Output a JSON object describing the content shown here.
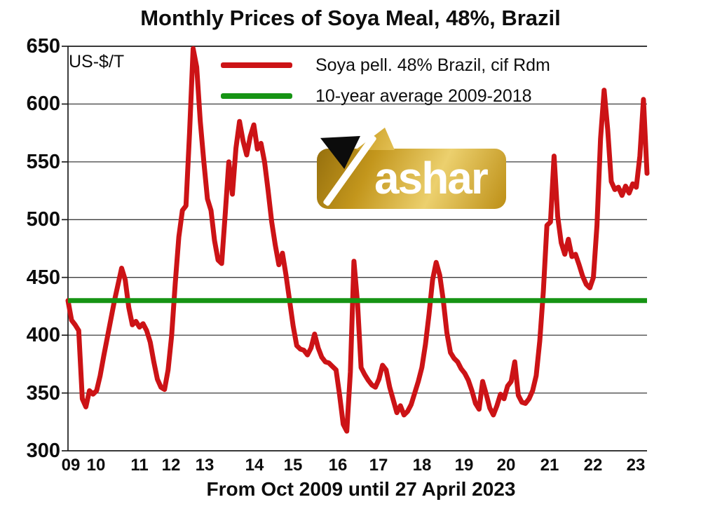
{
  "title": "Monthly Prices of Soya Meal, 48%, Brazil",
  "y_axis_unit_label": "US-$/T",
  "x_axis_caption": "From Oct 2009 until 27 April 2023",
  "legend": {
    "items": [
      {
        "label": "Soya pell. 48% Brazil, cif Rdm",
        "color": "#cc1316"
      },
      {
        "label": "10-year average 2009-2018",
        "color": "#169414"
      }
    ]
  },
  "watermark": {
    "brand": "Yashar",
    "text": "ashar"
  },
  "chart_data": {
    "type": "line",
    "title": "Monthly Prices of Soya Meal, 48%, Brazil",
    "ylabel": "US-$/T",
    "xlabel": "From Oct 2009 until 27 April 2023",
    "ylim": [
      300,
      650
    ],
    "y_ticks": [
      650,
      600,
      550,
      500,
      450,
      400,
      350,
      300
    ],
    "x_ticks": [
      {
        "label": "09",
        "pos": 0.005
      },
      {
        "label": "10",
        "pos": 0.048
      },
      {
        "label": "11",
        "pos": 0.123
      },
      {
        "label": "12",
        "pos": 0.178
      },
      {
        "label": "13",
        "pos": 0.236
      },
      {
        "label": "14",
        "pos": 0.322
      },
      {
        "label": "15",
        "pos": 0.389
      },
      {
        "label": "16",
        "pos": 0.466
      },
      {
        "label": "17",
        "pos": 0.536
      },
      {
        "label": "18",
        "pos": 0.611
      },
      {
        "label": "19",
        "pos": 0.684
      },
      {
        "label": "20",
        "pos": 0.757
      },
      {
        "label": "21",
        "pos": 0.832
      },
      {
        "label": "22",
        "pos": 0.907
      },
      {
        "label": "23",
        "pos": 0.981
      }
    ],
    "grid": "horizontal",
    "legend_position": "top-inside",
    "x_start": "2009-10",
    "x_end": "2023-04",
    "x_frequency": "monthly",
    "series": [
      {
        "name": "Soya pell. 48% Brazil, cif Rdm",
        "color": "#cc1316",
        "values": [
          430,
          413,
          409,
          404,
          345,
          338,
          352,
          349,
          352,
          365,
          382,
          398,
          414,
          430,
          444,
          458,
          448,
          424,
          409,
          412,
          407,
          410,
          404,
          394,
          377,
          362,
          355,
          353,
          370,
          400,
          445,
          485,
          508,
          512,
          575,
          648,
          632,
          585,
          550,
          518,
          508,
          482,
          465,
          462,
          505,
          550,
          522,
          562,
          585,
          568,
          556,
          572,
          582,
          561,
          566,
          550,
          525,
          498,
          478,
          461,
          471,
          452,
          430,
          408,
          391,
          388,
          387,
          383,
          389,
          401,
          389,
          381,
          377,
          376,
          373,
          370,
          348,
          323,
          317,
          368,
          464,
          428,
          372,
          366,
          361,
          357,
          355,
          362,
          374,
          370,
          355,
          344,
          333,
          339,
          331,
          334,
          340,
          350,
          360,
          372,
          392,
          418,
          448,
          463,
          452,
          430,
          402,
          385,
          380,
          377,
          371,
          367,
          361,
          352,
          341,
          336,
          360,
          349,
          337,
          331,
          339,
          349,
          345,
          356,
          360,
          377,
          348,
          342,
          341,
          345,
          352,
          365,
          395,
          438,
          495,
          498,
          555,
          503,
          480,
          470,
          483,
          468,
          470,
          461,
          451,
          444,
          441,
          450,
          495,
          570,
          612,
          578,
          533,
          526,
          528,
          521,
          529,
          523,
          531,
          528,
          555,
          604,
          540
        ]
      },
      {
        "name": "10-year average 2009-2018",
        "color": "#169414",
        "style": "constant",
        "value": 430
      }
    ]
  }
}
